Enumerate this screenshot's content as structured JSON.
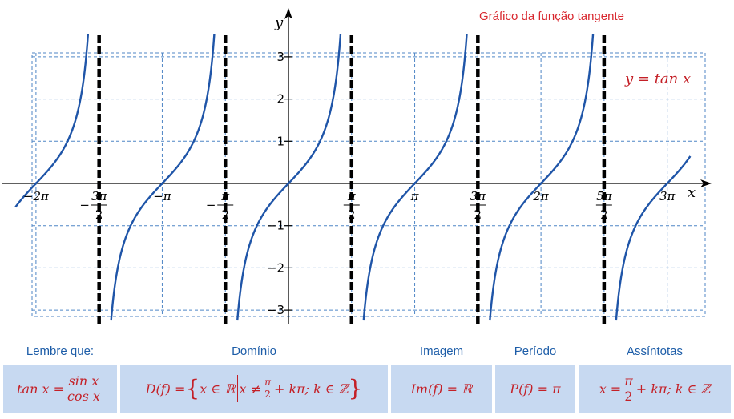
{
  "title": "Gráfico da função tangente",
  "equation": "y = tan x",
  "chart_data": {
    "type": "line",
    "function": "tan(x)",
    "title": "Gráfico da função tangente",
    "xlabel": "x",
    "ylabel": "y",
    "xlim": [
      -6.8,
      10.0
    ],
    "ylim": [
      -3.25,
      3.55
    ],
    "grid": true,
    "series": [
      {
        "name": "y = tan x",
        "color": "#1f55a8"
      }
    ],
    "asymptotes": [
      -4.712389,
      -1.570796,
      1.570796,
      4.712389,
      7.853982
    ],
    "x_ticks": [
      {
        "value": -6.283185,
        "label": "−2π"
      },
      {
        "value": -4.712389,
        "label": "3π/2",
        "sign": "−"
      },
      {
        "value": -3.141593,
        "label": "−π"
      },
      {
        "value": -1.570796,
        "label": "π/2",
        "sign": "−"
      },
      {
        "value": 1.570796,
        "label": "π/2"
      },
      {
        "value": 3.141593,
        "label": "π"
      },
      {
        "value": 4.712389,
        "label": "3π/2"
      },
      {
        "value": 6.283185,
        "label": "2π"
      },
      {
        "value": 7.853982,
        "label": "5π/2"
      },
      {
        "value": 9.424778,
        "label": "3π"
      }
    ],
    "y_ticks": [
      {
        "value": 3,
        "label": "3"
      },
      {
        "value": 2,
        "label": "2"
      },
      {
        "value": 1,
        "label": "1"
      },
      {
        "value": -1,
        "label": "−1"
      },
      {
        "value": -2,
        "label": "−2"
      },
      {
        "value": -3,
        "label": "−3"
      }
    ]
  },
  "panels": {
    "reminder": {
      "label": "Lembre que:",
      "lhs": "tan x =",
      "num": "sin x",
      "den": "cos x"
    },
    "domain": {
      "label": "Domínio",
      "lhs": "D(f) =",
      "set_start": "x ∈ ℝ",
      "cond": "x ≠",
      "num": "π",
      "den": "2",
      "tail": "+ kπ; k ∈ ℤ"
    },
    "image": {
      "label": "Imagem",
      "expr": "Im(f) = ℝ"
    },
    "period": {
      "label": "Período",
      "expr": "P(f) = π"
    },
    "asymptotes": {
      "label": "Assíntotas",
      "lhs": "x =",
      "num": "π",
      "den": "2",
      "tail": "+ kπ;  k ∈ ℤ"
    }
  },
  "colors": {
    "curve": "#1f55a8",
    "grid": "#4f86c6",
    "asymptote": "#000000",
    "title": "#d8262d",
    "math": "#c42027",
    "label": "#1d5da8",
    "panel_bg": "#c7d9f1"
  }
}
